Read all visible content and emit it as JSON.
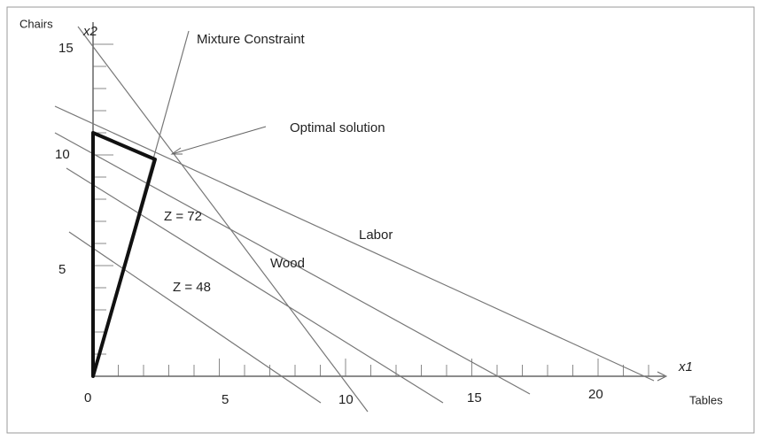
{
  "y_axis": {
    "label": "Chairs",
    "symbol": "x2",
    "ticks": [
      "5",
      "10",
      "15"
    ]
  },
  "x_axis": {
    "label": "Tables",
    "symbol": "x1",
    "ticks": [
      "0",
      "5",
      "10",
      "15",
      "20"
    ]
  },
  "annotations": {
    "mixture": "Mixture Constraint",
    "optimal": "Optimal solution",
    "z72": "Z = 72",
    "labor": "Labor",
    "wood": "Wood",
    "z48": "Z = 48"
  }
}
